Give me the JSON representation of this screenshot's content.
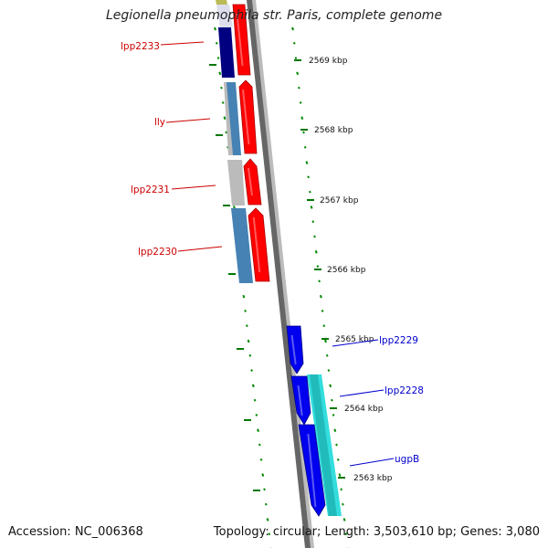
{
  "title": "Legionella pneumophila str. Paris, complete genome",
  "footer": {
    "accession": "Accession: NC_006368",
    "summary": "Topology: circular; Length: 3,503,610 bp; Genes: 3,080"
  },
  "scale_ticks": [
    {
      "label": "2569 kbp"
    },
    {
      "label": "2568 kbp"
    },
    {
      "label": "2567 kbp"
    },
    {
      "label": "2566 kbp"
    },
    {
      "label": "2565 kbp"
    },
    {
      "label": "2564 kbp"
    },
    {
      "label": "2563 kbp"
    }
  ],
  "genes": [
    {
      "name": "lpp2233",
      "strand": "reverse",
      "color": "#ff0000"
    },
    {
      "name": "lly",
      "strand": "reverse",
      "color": "#ff0000"
    },
    {
      "name": "lpp2231",
      "strand": "reverse",
      "color": "#ff0000"
    },
    {
      "name": "lpp2230",
      "strand": "reverse",
      "color": "#ff0000"
    },
    {
      "name": "lpp2229",
      "strand": "forward",
      "color": "#0000ee"
    },
    {
      "name": "lpp2228",
      "strand": "forward",
      "color": "#0000ee"
    },
    {
      "name": "ugpB",
      "strand": "forward",
      "color": "#0000ee"
    }
  ],
  "colors": {
    "forward_label": "#0000cc",
    "reverse_label": "#cc0000",
    "backbone": "#888888",
    "tick_marks": "#007700",
    "cog_cyan": "#33dddd",
    "cog_navy": "#000080",
    "cog_steelblue": "#4682b4",
    "cog_gray": "#bbbbbb"
  }
}
